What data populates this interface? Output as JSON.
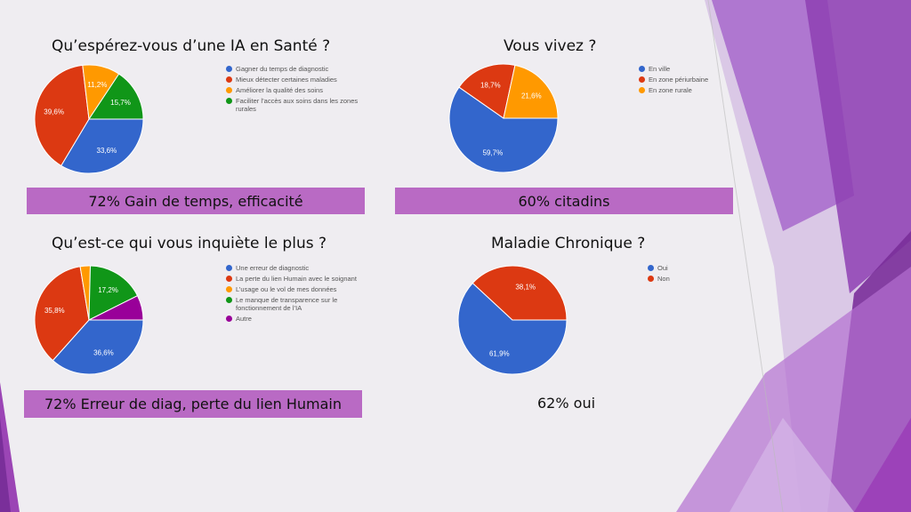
{
  "chart_data": [
    {
      "type": "pie",
      "title": "Qu’espérez-vous d’une IA en Santé ?",
      "categories": [
        "Gagner du temps de diagnostic",
        "Mieux détecter certaines maladies",
        "Améliorer la qualité des soins",
        "Faciliter l’accès aux soins dans les zones rurales"
      ],
      "values": [
        33.6,
        39.6,
        11.2,
        15.7
      ],
      "labels": [
        "33,6%",
        "39,6%",
        "11,2%",
        "15,7%"
      ],
      "colors": [
        "#3366cc",
        "#dc3912",
        "#ff9900",
        "#109618"
      ],
      "legend": "right",
      "summary": "72% Gain de temps, efficacité"
    },
    {
      "type": "pie",
      "title": "Vous vivez ?",
      "categories": [
        "En ville",
        "En zone périurbaine",
        "En zone rurale"
      ],
      "values": [
        59.7,
        18.7,
        21.6
      ],
      "labels": [
        "59,7%",
        "18,7%",
        "21,6%"
      ],
      "colors": [
        "#3366cc",
        "#dc3912",
        "#ff9900"
      ],
      "legend": "right",
      "summary": "60% citadins"
    },
    {
      "type": "pie",
      "title": "Qu’est-ce qui vous inquiète le plus ?",
      "categories": [
        "Une erreur de diagnostic",
        "La perte du lien Humain avec le soignant",
        "L’usage ou le vol de mes données",
        "Le manque de transparence sur le fonctionnement de l’IA",
        "Autre"
      ],
      "values": [
        36.6,
        35.8,
        3.0,
        17.2,
        7.4
      ],
      "labels": [
        "36,6%",
        "35,8%",
        "",
        "17,2%",
        ""
      ],
      "colors": [
        "#3366cc",
        "#dc3912",
        "#ff9900",
        "#109618",
        "#990099"
      ],
      "legend": "right",
      "summary": "72% Erreur de diag, perte du lien Humain"
    },
    {
      "type": "pie",
      "title": "Maladie Chronique ?",
      "categories": [
        "Oui",
        "Non"
      ],
      "values": [
        61.9,
        38.1
      ],
      "labels": [
        "61,9%",
        "38,1%"
      ],
      "colors": [
        "#3366cc",
        "#dc3912"
      ],
      "legend": "right",
      "summary": "62% oui"
    }
  ]
}
